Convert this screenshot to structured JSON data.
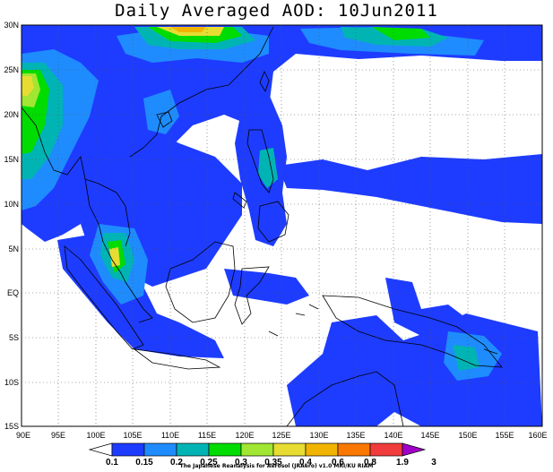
{
  "title": "Daily Averaged AOD: 10Jun2011",
  "credit": "The Japanese Reanalysis for Aerosol (JRAero) v1.0 MRI/KU RIAM",
  "lat_labels": [
    "30N",
    "25N",
    "20N",
    "15N",
    "10N",
    "5N",
    "EQ",
    "5S",
    "10S",
    "15S"
  ],
  "lon_labels": [
    "90E",
    "95E",
    "100E",
    "105E",
    "110E",
    "115E",
    "120E",
    "125E",
    "130E",
    "135E",
    "140E",
    "145E",
    "150E",
    "155E",
    "160E"
  ],
  "colorbar": {
    "labels": [
      "0.1",
      "0.15",
      "0.2",
      "0.25",
      "0.3",
      "0.35",
      "0.4",
      "0.6",
      "0.8",
      "1.9",
      "3"
    ],
    "colors": [
      "#ffffff",
      "#1e3cff",
      "#1e8cff",
      "#00b4b4",
      "#00dc00",
      "#a0e632",
      "#e6dc32",
      "#f0b400",
      "#fa7800",
      "#f03c3c",
      "#a000c8"
    ]
  },
  "colors": {
    "blue": "#1e3cff",
    "lightblue": "#1e8cff",
    "teal": "#00b4b4",
    "green": "#00dc00",
    "yellowgreen": "#a0e632",
    "yellow": "#e6dc32",
    "orange": "#f0b400"
  }
}
